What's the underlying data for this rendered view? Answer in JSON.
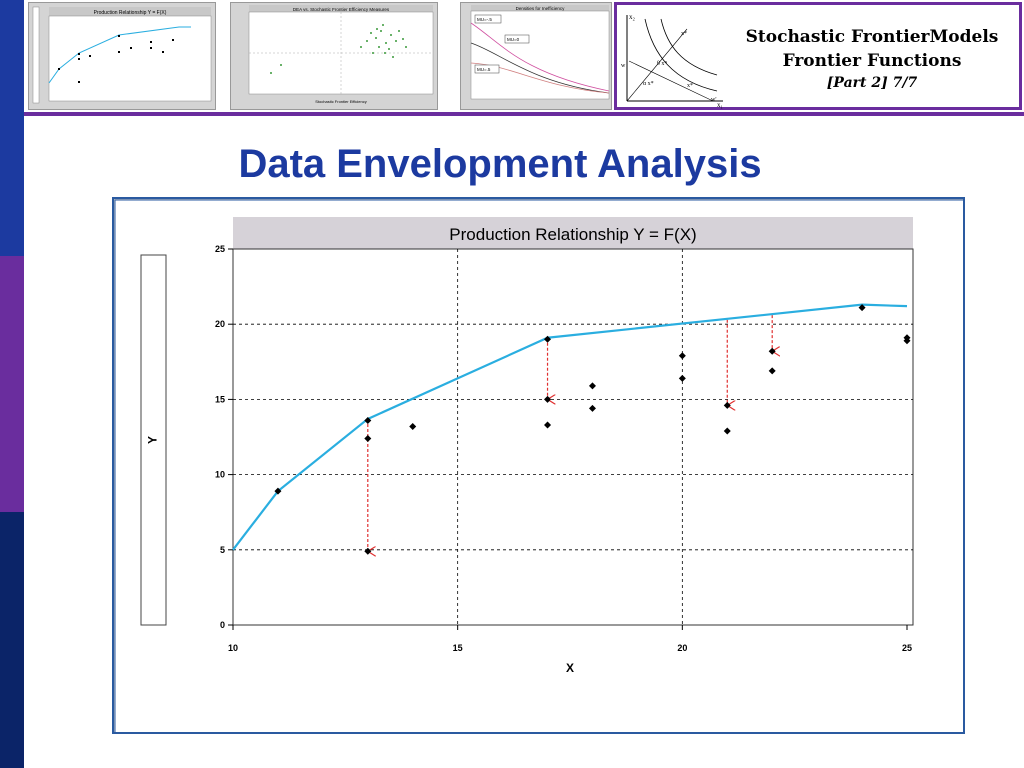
{
  "slide": {
    "header_line1": "Stochastic FrontierModels",
    "header_line2": "Frontier Functions",
    "header_line3": "[Part 2]   7/7",
    "title": "Data Envelopment Analysis"
  },
  "thumbnails": {
    "thumb1_title": "Production Relationship Y = F(X)",
    "thumb2_title": "DEA vs. Stochastic Frontier Efficiency Measures",
    "thumb2_xlabel": "Stochastic Frontier Efficiency",
    "thumb3_title": "Densities for Inefficiency",
    "thumb3_labels": [
      "MU=-.5",
      "MU=0",
      "MU=.5"
    ]
  },
  "diagram": {
    "axis_x2": "x₂",
    "axis_x1": "x₁",
    "labels": [
      "x*",
      "θ x*",
      "α x*",
      "x*",
      "w",
      "w'"
    ]
  },
  "colors": {
    "frontier": "#2aaee0",
    "arrow": "#e03030",
    "points": "#000000",
    "accent_blue": "#1c3aa0",
    "accent_purple": "#6a2d9e"
  },
  "chart_data": {
    "type": "scatter",
    "title": "Production Relationship Y = F(X)",
    "xlabel": "X",
    "ylabel": "Y",
    "xlim": [
      10,
      25
    ],
    "ylim": [
      0,
      25
    ],
    "xticks": [
      10,
      15,
      20,
      25
    ],
    "yticks": [
      0,
      5,
      10,
      15,
      20,
      25
    ],
    "grid": "dashed",
    "points": [
      {
        "x": 11,
        "y": 8.9
      },
      {
        "x": 13,
        "y": 13.6
      },
      {
        "x": 13,
        "y": 12.4
      },
      {
        "x": 13,
        "y": 4.9
      },
      {
        "x": 14,
        "y": 13.2
      },
      {
        "x": 17,
        "y": 19.0
      },
      {
        "x": 17,
        "y": 15.0
      },
      {
        "x": 17,
        "y": 13.3
      },
      {
        "x": 18,
        "y": 15.9
      },
      {
        "x": 18,
        "y": 14.4
      },
      {
        "x": 20,
        "y": 17.9
      },
      {
        "x": 20,
        "y": 16.4
      },
      {
        "x": 21,
        "y": 14.6
      },
      {
        "x": 21,
        "y": 12.9
      },
      {
        "x": 22,
        "y": 18.2
      },
      {
        "x": 22,
        "y": 16.9
      },
      {
        "x": 24,
        "y": 21.1
      },
      {
        "x": 25,
        "y": 19.1
      },
      {
        "x": 25,
        "y": 18.9
      }
    ],
    "frontier": {
      "x": [
        10,
        11,
        13,
        17,
        24,
        25
      ],
      "y": [
        5.0,
        8.9,
        13.7,
        19.1,
        21.3,
        21.2
      ]
    },
    "projections": [
      {
        "x": 13,
        "from": 13.7,
        "to": 4.9
      },
      {
        "x": 17,
        "from": 19.1,
        "to": 15.0
      },
      {
        "x": 21,
        "from": 20.3,
        "to": 14.6
      },
      {
        "x": 22,
        "from": 20.6,
        "to": 18.2
      }
    ]
  }
}
